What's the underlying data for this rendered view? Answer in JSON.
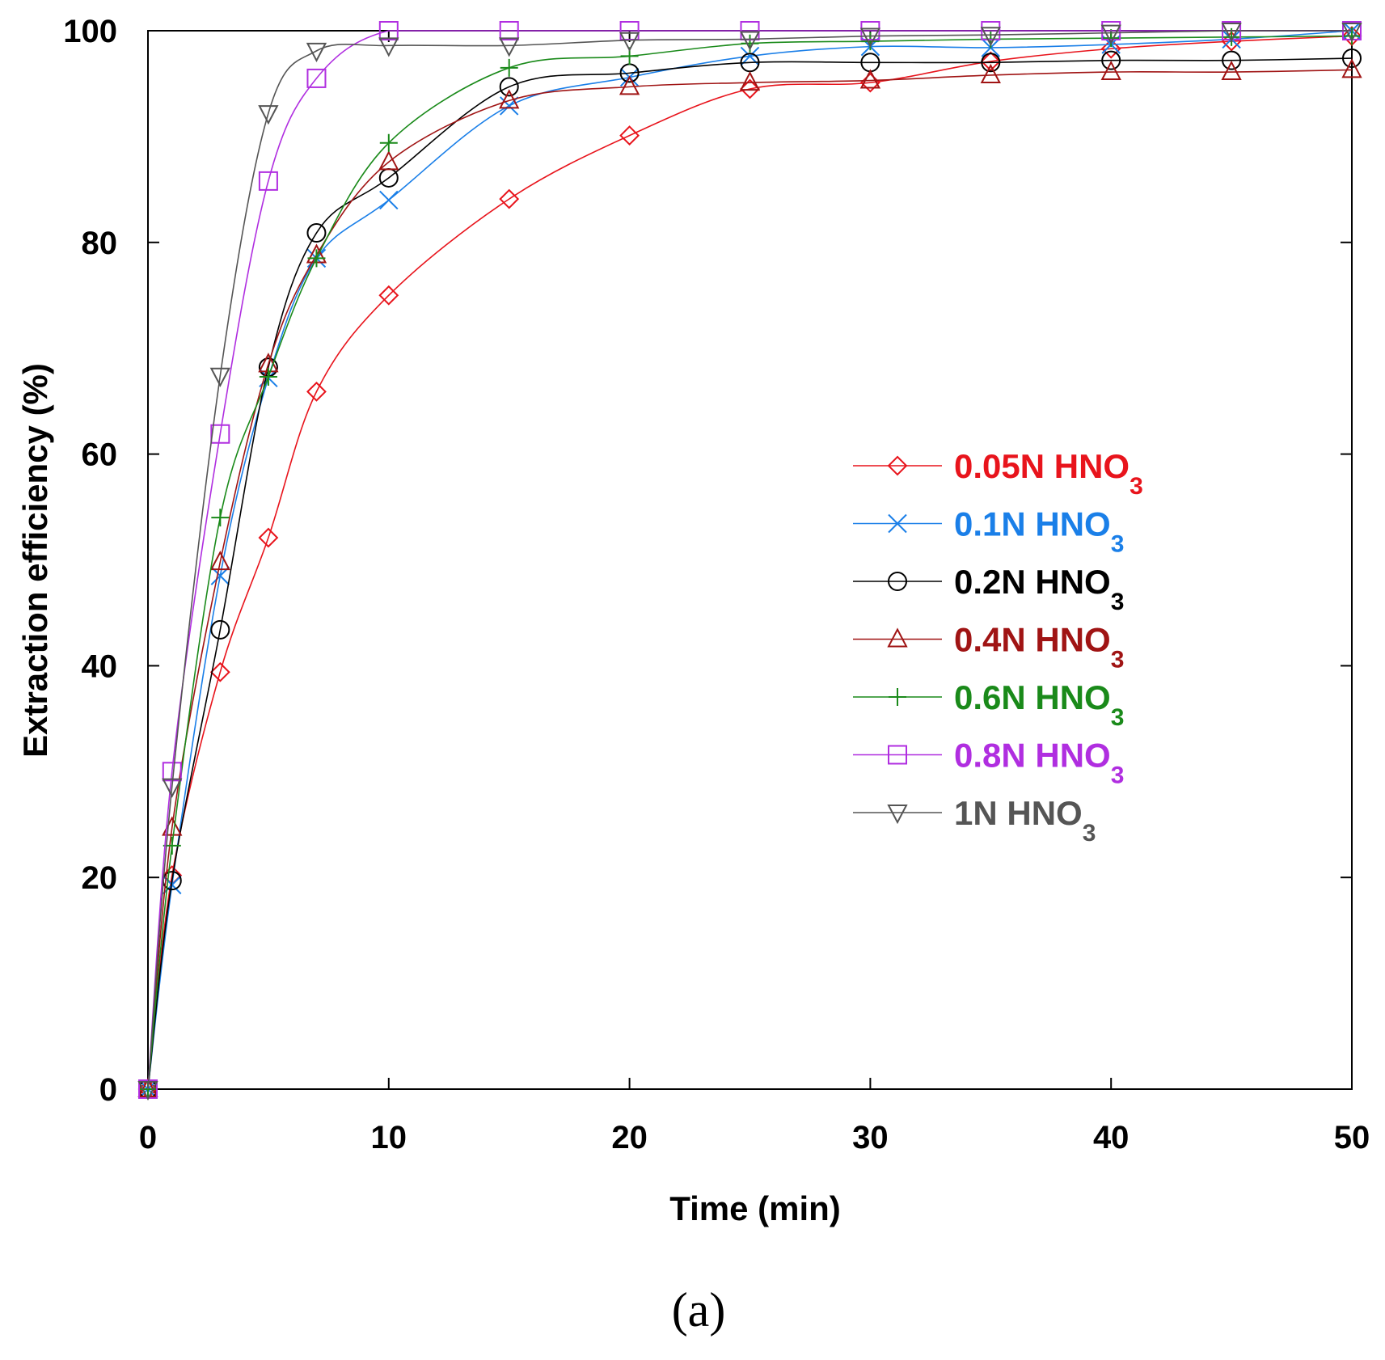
{
  "chart_data": {
    "type": "line",
    "title": "",
    "caption": "(a)",
    "xlabel": "Time (min)",
    "ylabel": "Extraction efficiency (%)",
    "xlim": [
      0,
      50
    ],
    "ylim": [
      0,
      100
    ],
    "xticks": [
      0,
      10,
      20,
      30,
      40,
      50
    ],
    "yticks": [
      0,
      20,
      40,
      60,
      80,
      100
    ],
    "grid": false,
    "legend_position": "center-right",
    "series": [
      {
        "name": "0.05N HNO3",
        "label_main": "0.05N HNO",
        "label_sub": "3",
        "marker": "diamond",
        "color": "#e8141c",
        "x": [
          0,
          1,
          3,
          5,
          7,
          10,
          15,
          20,
          25,
          30,
          35,
          40,
          45,
          50
        ],
        "y": [
          0,
          20.2,
          39.4,
          52.1,
          65.9,
          75.0,
          84.1,
          90.1,
          94.5,
          95.1,
          97.1,
          98.3,
          99.0,
          99.5
        ]
      },
      {
        "name": "0.1N HNO3",
        "label_main": "0.1N HNO",
        "label_sub": "3",
        "marker": "x",
        "color": "#1a7fe8",
        "x": [
          0,
          1,
          3,
          5,
          7,
          10,
          15,
          20,
          25,
          30,
          35,
          40,
          45,
          50
        ],
        "y": [
          0,
          19.3,
          48.5,
          67.2,
          78.5,
          84.0,
          92.9,
          95.6,
          97.6,
          98.5,
          98.4,
          98.7,
          99.2,
          100.0
        ]
      },
      {
        "name": "0.2N HNO3",
        "label_main": "0.2N HNO",
        "label_sub": "3",
        "marker": "circle",
        "color": "#000000",
        "x": [
          0,
          1,
          3,
          5,
          7,
          10,
          15,
          20,
          25,
          30,
          35,
          40,
          45,
          50
        ],
        "y": [
          0,
          19.7,
          43.4,
          68.2,
          80.9,
          86.1,
          94.7,
          96.0,
          97.0,
          97.0,
          97.0,
          97.2,
          97.2,
          97.4
        ]
      },
      {
        "name": "0.4N HNO3",
        "label_main": "0.4N HNO",
        "label_sub": "3",
        "marker": "triangle-up",
        "color": "#a01414",
        "x": [
          0,
          1,
          3,
          5,
          7,
          10,
          15,
          20,
          25,
          30,
          35,
          40,
          45,
          50
        ],
        "y": [
          0,
          24.7,
          49.8,
          68.5,
          78.8,
          87.6,
          93.4,
          94.7,
          95.1,
          95.3,
          95.8,
          96.1,
          96.1,
          96.3
        ]
      },
      {
        "name": "0.6N HNO3",
        "label_main": "0.6N HNO",
        "label_sub": "3",
        "marker": "plus",
        "color": "#1a8a1a",
        "x": [
          0,
          1,
          3,
          5,
          7,
          10,
          15,
          20,
          25,
          30,
          35,
          40,
          45,
          50
        ],
        "y": [
          0,
          23.0,
          54.0,
          67.3,
          78.5,
          89.4,
          96.5,
          97.6,
          98.8,
          99.0,
          99.2,
          99.3,
          99.4,
          99.5
        ]
      },
      {
        "name": "0.8N HNO3",
        "label_main": "0.8N HNO",
        "label_sub": "3",
        "marker": "square",
        "color": "#b02ee0",
        "x": [
          0,
          1,
          3,
          5,
          7,
          10,
          15,
          20,
          25,
          30,
          35,
          40,
          45,
          50
        ],
        "y": [
          0,
          30.0,
          61.9,
          85.8,
          95.5,
          100,
          100,
          100,
          100,
          100,
          100,
          100,
          100,
          100
        ]
      },
      {
        "name": "1N HNO3",
        "label_main": "1N HNO",
        "label_sub": "3",
        "marker": "triangle-down",
        "color": "#555555",
        "x": [
          0,
          1,
          3,
          5,
          7,
          10,
          15,
          20,
          25,
          30,
          35,
          40,
          45,
          50
        ],
        "y": [
          0,
          28.6,
          67.4,
          92.2,
          98.1,
          98.6,
          98.6,
          99.1,
          99.2,
          99.5,
          99.6,
          99.8,
          100,
          100
        ]
      }
    ]
  }
}
